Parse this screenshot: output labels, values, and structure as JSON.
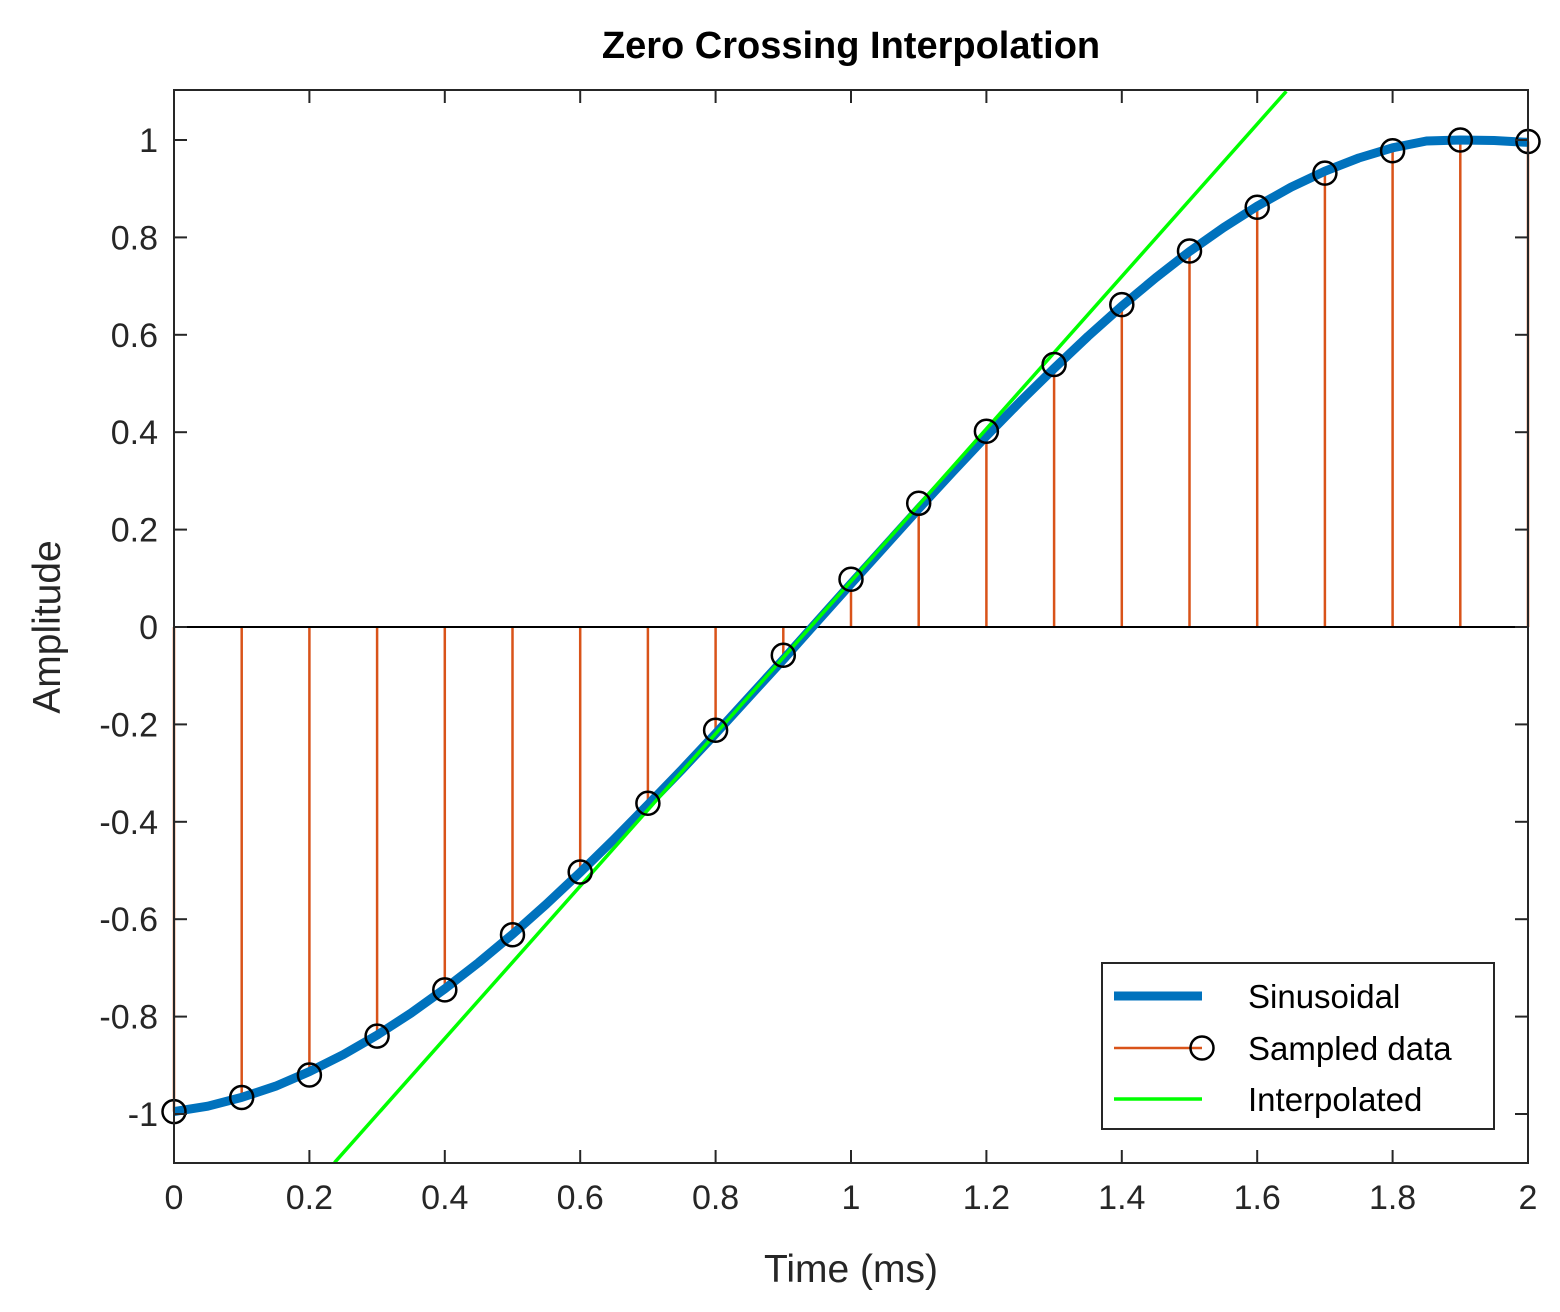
{
  "chart_data": {
    "type": "line",
    "title": "Zero Crossing Interpolation",
    "xlabel": "Time (ms)",
    "ylabel": "Amplitude",
    "xlim": [
      0,
      2
    ],
    "ylim": [
      -1.1,
      1.1
    ],
    "xticks": [
      0,
      0.2,
      0.4,
      0.6,
      0.8,
      1,
      1.2,
      1.4,
      1.6,
      1.8,
      2
    ],
    "xtick_labels": [
      "0",
      "0.2",
      "0.4",
      "0.6",
      "0.8",
      "1",
      "1.2",
      "1.4",
      "1.6",
      "1.8",
      "2"
    ],
    "yticks": [
      1,
      0.8,
      0.6,
      0.4,
      0.2,
      0,
      -0.2,
      -0.4,
      -0.6,
      -0.8,
      -1
    ],
    "ytick_labels": [
      "1",
      "0.8",
      "0.6",
      "0.4",
      "0.2",
      "0",
      "-0.2",
      "-0.4",
      "-0.6",
      "-0.8",
      "-1"
    ],
    "grid": false,
    "legend_position": "bottom-right",
    "series": [
      {
        "name": "Sinusoidal",
        "kind": "line",
        "color": "#0072BD",
        "x": [
          0,
          0.05,
          0.1,
          0.15,
          0.2,
          0.25,
          0.3,
          0.35,
          0.4,
          0.45,
          0.5,
          0.55,
          0.6,
          0.65,
          0.7,
          0.75,
          0.8,
          0.85,
          0.9,
          0.95,
          1.0,
          1.05,
          1.1,
          1.15,
          1.2,
          1.25,
          1.3,
          1.35,
          1.4,
          1.45,
          1.5,
          1.55,
          1.6,
          1.65,
          1.7,
          1.75,
          1.8,
          1.85,
          1.9,
          1.95,
          2.0
        ],
        "values": [
          -0.995,
          -0.984,
          -0.966,
          -0.943,
          -0.913,
          -0.878,
          -0.838,
          -0.793,
          -0.743,
          -0.689,
          -0.631,
          -0.569,
          -0.504,
          -0.436,
          -0.365,
          -0.293,
          -0.219,
          -0.143,
          -0.067,
          0.011,
          0.089,
          0.166,
          0.243,
          0.318,
          0.392,
          0.463,
          0.531,
          0.597,
          0.659,
          0.717,
          0.771,
          0.82,
          0.864,
          0.903,
          0.936,
          0.963,
          0.984,
          0.998,
          1.0,
          0.999,
          0.995
        ]
      },
      {
        "name": "Sampled data",
        "kind": "stem",
        "color": "#D95319",
        "marker_color": "#000000",
        "x": [
          0,
          0.1,
          0.2,
          0.3,
          0.4,
          0.5,
          0.6,
          0.7,
          0.8,
          0.9,
          1.0,
          1.1,
          1.2,
          1.3,
          1.4,
          1.5,
          1.6,
          1.7,
          1.8,
          1.9,
          2.0
        ],
        "values": [
          -0.995,
          -0.966,
          -0.92,
          -0.84,
          -0.745,
          -0.632,
          -0.503,
          -0.362,
          -0.212,
          -0.058,
          0.098,
          0.254,
          0.402,
          0.539,
          0.662,
          0.772,
          0.862,
          0.932,
          0.978,
          1.0,
          0.997
        ]
      },
      {
        "name": "Interpolated",
        "kind": "line",
        "color": "#00FF00",
        "x": [
          0.237,
          1.643
        ],
        "values": [
          -1.1,
          1.1
        ]
      }
    ]
  }
}
